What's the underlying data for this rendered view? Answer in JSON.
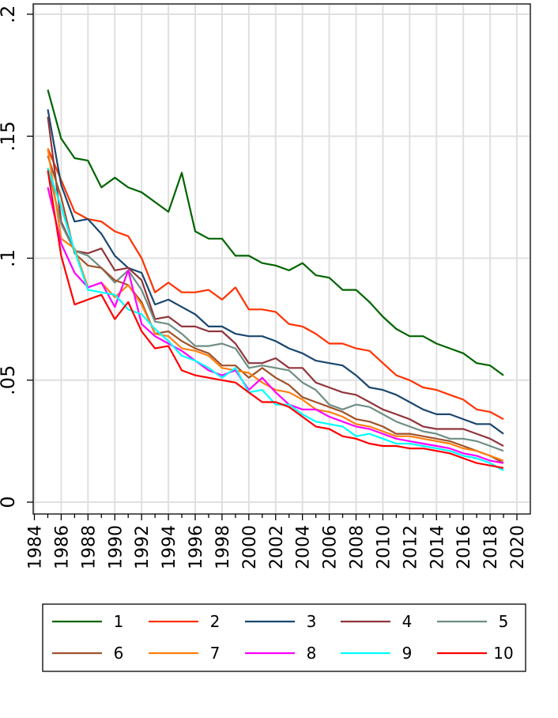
{
  "chart_data": {
    "type": "line",
    "title": "",
    "xlabel": "",
    "ylabel": "",
    "xlim": [
      1984,
      2020
    ],
    "ylim": [
      0,
      0.2
    ],
    "grid": true,
    "legend_position": "bottom",
    "x_ticks": [
      1984,
      1986,
      1988,
      1990,
      1992,
      1994,
      1996,
      1998,
      2000,
      2002,
      2004,
      2006,
      2008,
      2010,
      2012,
      2014,
      2016,
      2018,
      2020
    ],
    "x_tick_labels": [
      "1984",
      "1986",
      "1988",
      "1990",
      "1992",
      "1994",
      "1996",
      "1998",
      "2000",
      "2002",
      "2004",
      "2006",
      "2008",
      "2010",
      "2012",
      "2014",
      "2016",
      "2018",
      "2020"
    ],
    "y_ticks": [
      0,
      0.05,
      0.1,
      0.15,
      0.2
    ],
    "y_tick_labels": [
      "0",
      ".05",
      ".1",
      ".15",
      ".2"
    ],
    "x": [
      1985,
      1986,
      1987,
      1988,
      1989,
      1990,
      1991,
      1992,
      1993,
      1994,
      1995,
      1996,
      1997,
      1998,
      1999,
      2000,
      2001,
      2002,
      2003,
      2004,
      2005,
      2006,
      2007,
      2008,
      2009,
      2010,
      2011,
      2012,
      2013,
      2014,
      2015,
      2016,
      2017,
      2018,
      2019
    ],
    "series": [
      {
        "name": "1",
        "color": "#006400",
        "values": [
          0.169,
          0.149,
          0.141,
          0.14,
          0.129,
          0.133,
          0.129,
          0.127,
          0.123,
          0.119,
          0.135,
          0.111,
          0.108,
          0.108,
          0.101,
          0.101,
          0.098,
          0.097,
          0.095,
          0.098,
          0.093,
          0.092,
          0.087,
          0.087,
          0.082,
          0.076,
          0.071,
          0.068,
          0.068,
          0.065,
          0.063,
          0.061,
          0.057,
          0.056,
          0.052
        ]
      },
      {
        "name": "2",
        "color": "#ff3300",
        "values": [
          0.145,
          0.132,
          0.119,
          0.116,
          0.115,
          0.111,
          0.109,
          0.1,
          0.086,
          0.09,
          0.086,
          0.086,
          0.087,
          0.083,
          0.088,
          0.079,
          0.079,
          0.078,
          0.073,
          0.072,
          0.069,
          0.065,
          0.065,
          0.063,
          0.062,
          0.057,
          0.052,
          0.05,
          0.047,
          0.046,
          0.044,
          0.042,
          0.038,
          0.037,
          0.034
        ]
      },
      {
        "name": "3",
        "color": "#1a476f",
        "values": [
          0.161,
          0.13,
          0.115,
          0.116,
          0.11,
          0.101,
          0.096,
          0.094,
          0.081,
          0.083,
          0.08,
          0.077,
          0.072,
          0.072,
          0.069,
          0.068,
          0.068,
          0.066,
          0.063,
          0.061,
          0.058,
          0.057,
          0.056,
          0.052,
          0.047,
          0.046,
          0.044,
          0.041,
          0.038,
          0.036,
          0.036,
          0.034,
          0.032,
          0.032,
          0.028
        ]
      },
      {
        "name": "4",
        "color": "#90353b",
        "values": [
          0.158,
          0.115,
          0.103,
          0.102,
          0.104,
          0.095,
          0.096,
          0.091,
          0.075,
          0.076,
          0.072,
          0.072,
          0.07,
          0.07,
          0.065,
          0.057,
          0.057,
          0.059,
          0.055,
          0.055,
          0.049,
          0.047,
          0.045,
          0.044,
          0.041,
          0.038,
          0.036,
          0.034,
          0.031,
          0.03,
          0.03,
          0.03,
          0.028,
          0.026,
          0.023
        ]
      },
      {
        "name": "5",
        "color": "#6e8e84",
        "values": [
          0.137,
          0.114,
          0.103,
          0.101,
          0.096,
          0.09,
          0.095,
          0.087,
          0.074,
          0.073,
          0.069,
          0.064,
          0.064,
          0.065,
          0.063,
          0.055,
          0.056,
          0.055,
          0.054,
          0.049,
          0.046,
          0.04,
          0.038,
          0.04,
          0.039,
          0.036,
          0.033,
          0.031,
          0.029,
          0.028,
          0.026,
          0.026,
          0.025,
          0.023,
          0.021
        ]
      },
      {
        "name": "6",
        "color": "#a0522d",
        "values": [
          0.142,
          0.125,
          0.102,
          0.097,
          0.096,
          0.091,
          0.089,
          0.082,
          0.069,
          0.07,
          0.066,
          0.063,
          0.061,
          0.056,
          0.056,
          0.051,
          0.055,
          0.051,
          0.048,
          0.043,
          0.041,
          0.039,
          0.037,
          0.034,
          0.033,
          0.031,
          0.028,
          0.028,
          0.027,
          0.026,
          0.025,
          0.023,
          0.021,
          0.019,
          0.016
        ]
      },
      {
        "name": "7",
        "color": "#ff7f0e",
        "values": [
          0.145,
          0.108,
          0.104,
          0.088,
          0.09,
          0.084,
          0.089,
          0.081,
          0.069,
          0.068,
          0.063,
          0.062,
          0.06,
          0.055,
          0.054,
          0.053,
          0.049,
          0.046,
          0.045,
          0.042,
          0.038,
          0.037,
          0.035,
          0.032,
          0.031,
          0.029,
          0.027,
          0.027,
          0.026,
          0.025,
          0.024,
          0.022,
          0.021,
          0.019,
          0.017
        ]
      },
      {
        "name": "8",
        "color": "#ff00ff",
        "values": [
          0.129,
          0.106,
          0.094,
          0.088,
          0.09,
          0.08,
          0.095,
          0.073,
          0.068,
          0.065,
          0.062,
          0.058,
          0.054,
          0.052,
          0.054,
          0.046,
          0.051,
          0.045,
          0.04,
          0.038,
          0.038,
          0.035,
          0.033,
          0.031,
          0.03,
          0.028,
          0.026,
          0.025,
          0.024,
          0.023,
          0.022,
          0.02,
          0.019,
          0.017,
          0.016
        ]
      },
      {
        "name": "9",
        "color": "#00ffff",
        "values": [
          0.137,
          0.121,
          0.103,
          0.087,
          0.086,
          0.085,
          0.079,
          0.077,
          0.071,
          0.066,
          0.06,
          0.058,
          0.055,
          0.051,
          0.055,
          0.045,
          0.046,
          0.04,
          0.04,
          0.036,
          0.033,
          0.032,
          0.031,
          0.027,
          0.028,
          0.026,
          0.024,
          0.024,
          0.023,
          0.022,
          0.021,
          0.019,
          0.018,
          0.016,
          0.013
        ]
      },
      {
        "name": "10",
        "color": "#ff0000",
        "values": [
          0.136,
          0.101,
          0.081,
          0.083,
          0.085,
          0.075,
          0.082,
          0.07,
          0.063,
          0.064,
          0.054,
          0.052,
          0.051,
          0.05,
          0.049,
          0.045,
          0.041,
          0.041,
          0.039,
          0.035,
          0.031,
          0.03,
          0.027,
          0.026,
          0.024,
          0.023,
          0.023,
          0.022,
          0.022,
          0.021,
          0.02,
          0.018,
          0.016,
          0.015,
          0.014
        ]
      }
    ]
  }
}
